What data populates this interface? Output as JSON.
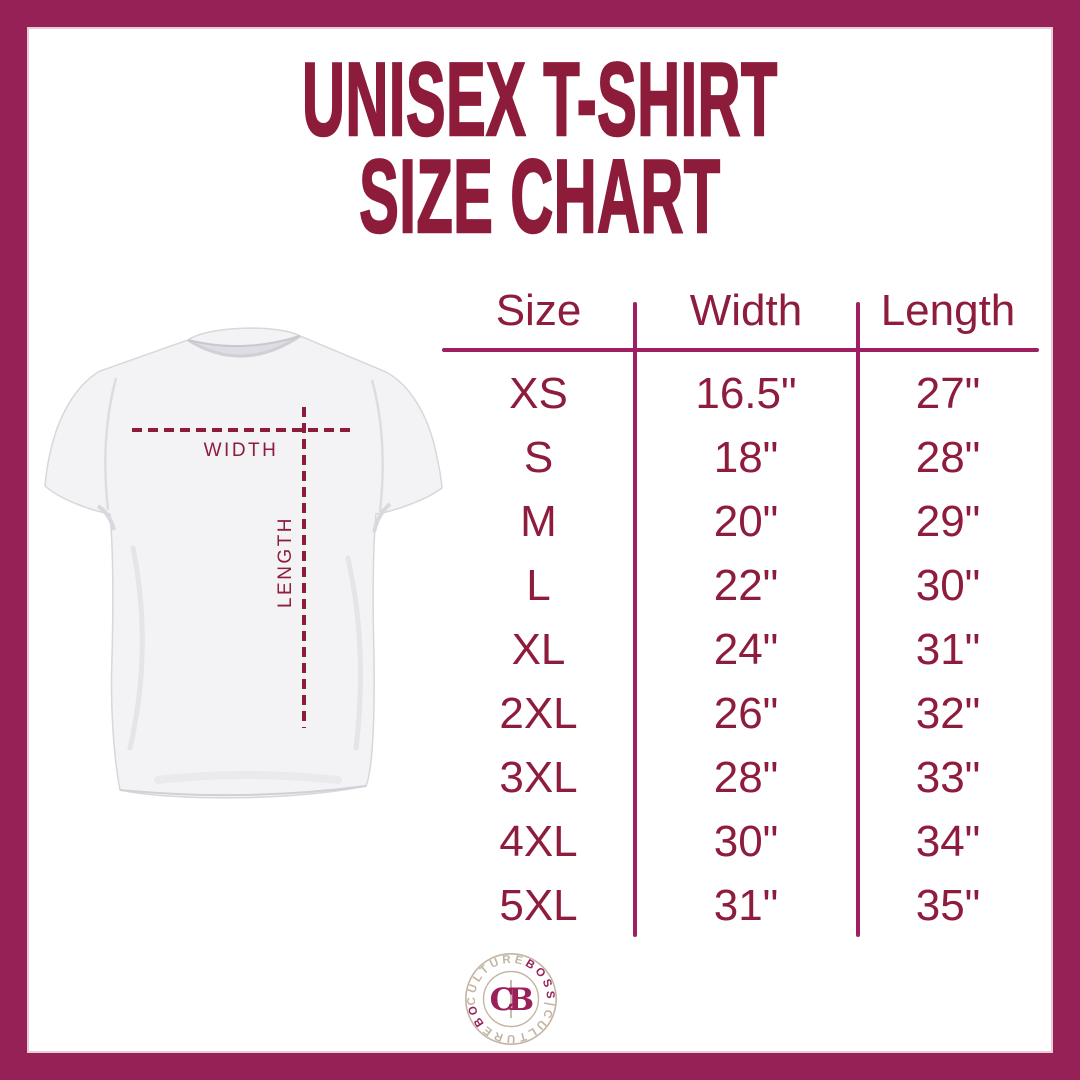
{
  "colors": {
    "frame": "#962157",
    "frame_inner": "#E8CAD8",
    "title": "#8D1C3B",
    "table_text": "#8E1C3D",
    "table_line": "#9F2062",
    "dash": "#8E1C38",
    "logo_tan": "#C3B5A4",
    "logo_magenta": "#992058",
    "shirt": "#F3F3F5",
    "shirt_outline": "#D7D7DC"
  },
  "title": {
    "line1": "UNISEX T-SHIRT",
    "line2": "SIZE CHART"
  },
  "diagram": {
    "width_label": "WIDTH",
    "length_label": "LENGTH"
  },
  "size_chart": {
    "columns": [
      "Size",
      "Width",
      "Length"
    ],
    "rows": [
      [
        "XS",
        "16.5\"",
        "27\""
      ],
      [
        "S",
        "18\"",
        "28\""
      ],
      [
        "M",
        "20\"",
        "29\""
      ],
      [
        "L",
        "22\"",
        "30\""
      ],
      [
        "XL",
        "24\"",
        "31\""
      ],
      [
        "2XL",
        "26\"",
        "32\""
      ],
      [
        "3XL",
        "28\"",
        "33\""
      ],
      [
        "4XL",
        "30\"",
        "34\""
      ],
      [
        "5XL",
        "31\"",
        "35\""
      ]
    ]
  },
  "logo": {
    "ring_segments": [
      {
        "text": "CULTURE",
        "color": "#C3B5A4"
      },
      {
        "text": "BOSS",
        "color": "#992058"
      },
      {
        "text": "|",
        "color": "#C3B5A4"
      },
      {
        "text": "CULTURE",
        "color": "#C3B5A4"
      },
      {
        "text": "BOSS",
        "color": "#992058"
      },
      {
        "text": "|",
        "color": "#C3B5A4"
      }
    ],
    "center_left": "C",
    "center_right": "B"
  },
  "chart_data": {
    "type": "table",
    "title": "UNISEX T-SHIRT SIZE CHART",
    "columns": [
      "Size",
      "Width",
      "Length"
    ],
    "rows": [
      [
        "XS",
        "16.5\"",
        "27\""
      ],
      [
        "S",
        "18\"",
        "28\""
      ],
      [
        "M",
        "20\"",
        "29\""
      ],
      [
        "L",
        "22\"",
        "30\""
      ],
      [
        "XL",
        "24\"",
        "31\""
      ],
      [
        "2XL",
        "26\"",
        "32\""
      ],
      [
        "3XL",
        "28\"",
        "33\""
      ],
      [
        "4XL",
        "30\"",
        "34\""
      ],
      [
        "5XL",
        "31\"",
        "35\""
      ]
    ],
    "width_values_inches": [
      16.5,
      18,
      20,
      22,
      24,
      26,
      28,
      30,
      31
    ],
    "length_values_inches": [
      27,
      28,
      29,
      30,
      31,
      32,
      33,
      34,
      35
    ]
  }
}
